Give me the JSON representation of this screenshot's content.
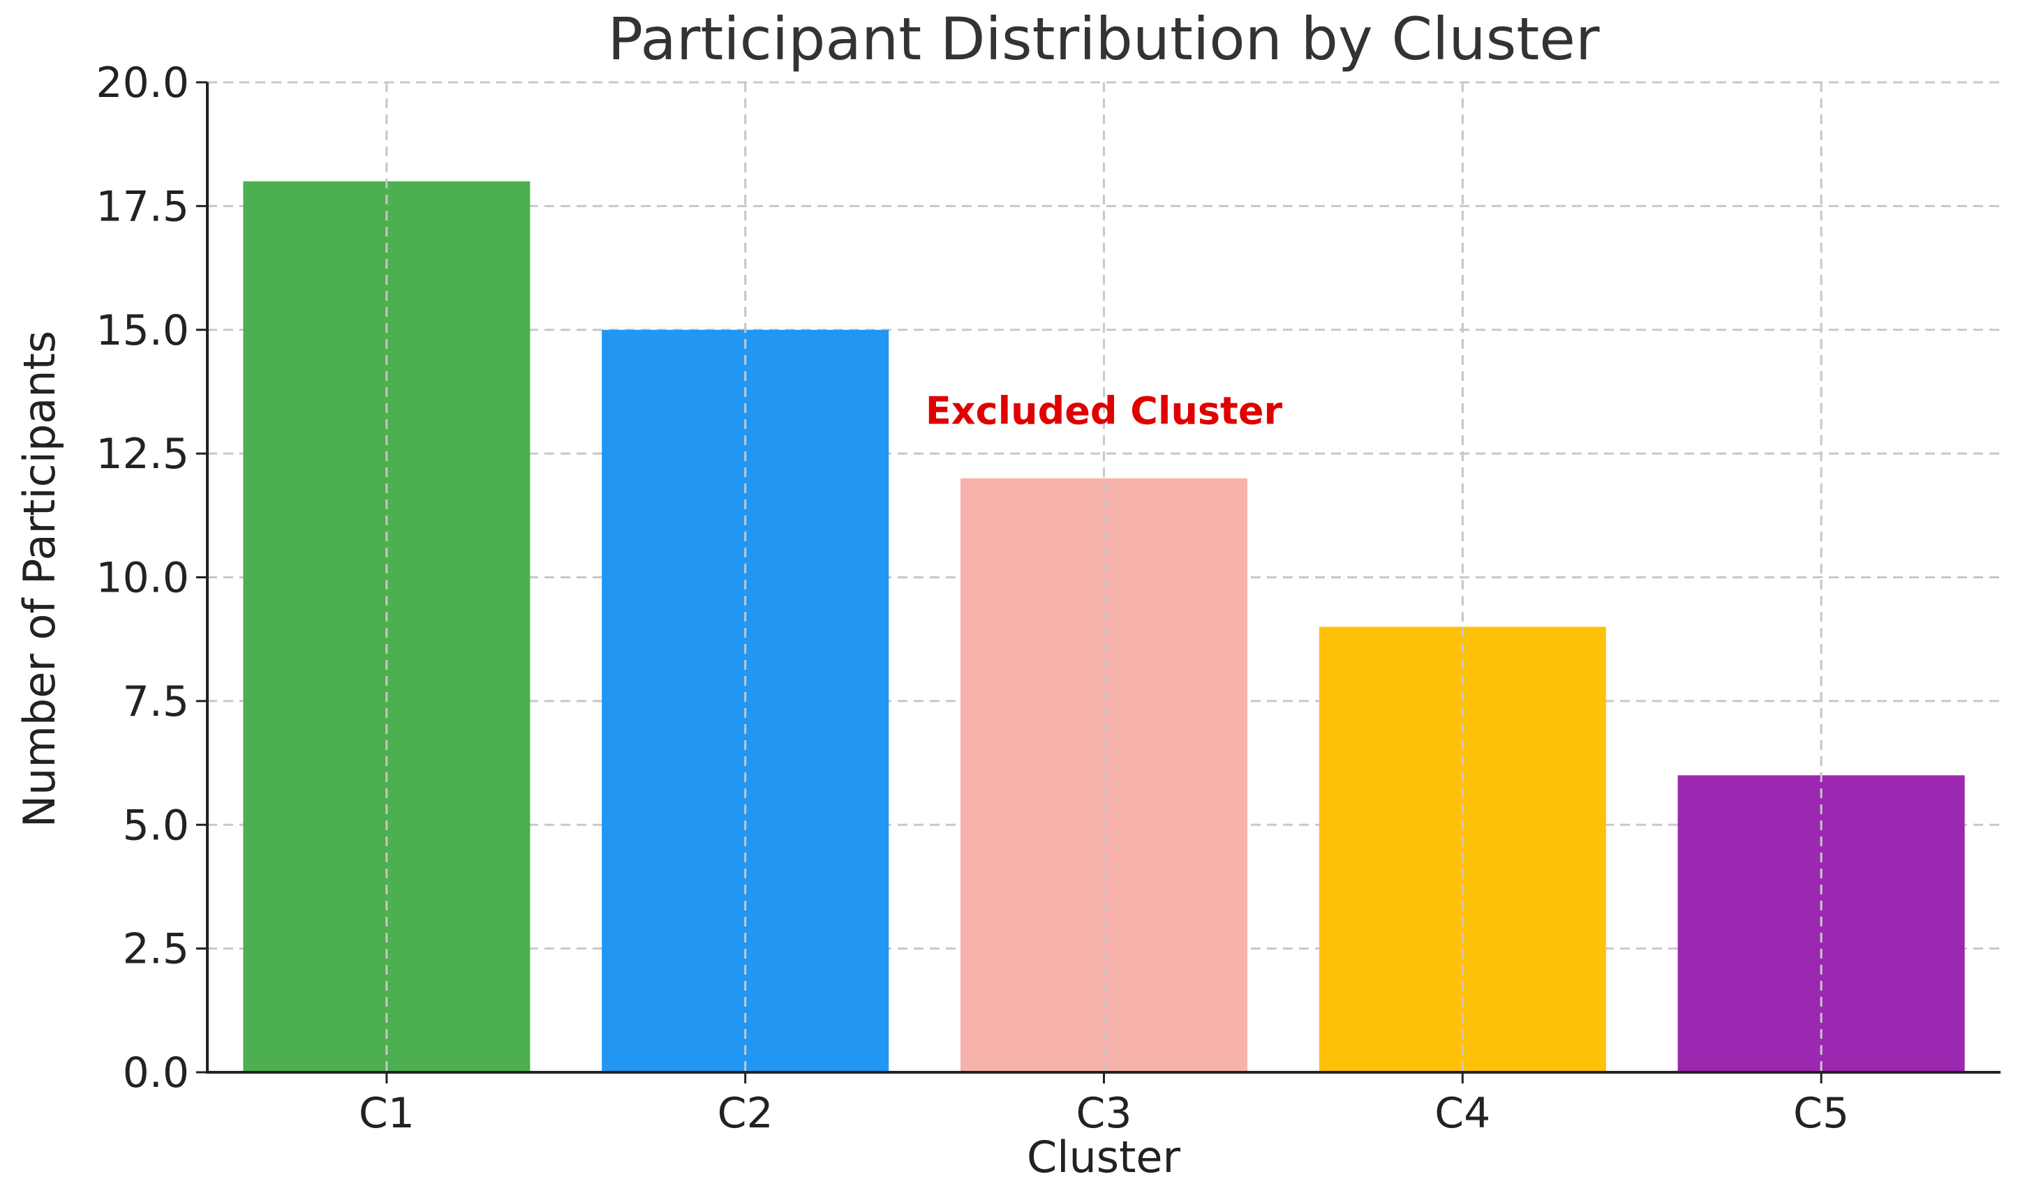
{
  "chart_data": {
    "type": "bar",
    "title": "Participant Distribution by Cluster",
    "xlabel": "Cluster",
    "ylabel": "Number of Participants",
    "categories": [
      "C1",
      "C2",
      "C3",
      "C4",
      "C5"
    ],
    "values": [
      18,
      15,
      12,
      9,
      6
    ],
    "colors": [
      "#4caf50",
      "#2196f3",
      "#f8b2ac",
      "#ffc107",
      "#9c27b0"
    ],
    "ylim": [
      0,
      20
    ],
    "yticks": [
      "0.0",
      "2.5",
      "5.0",
      "7.5",
      "10.0",
      "12.5",
      "15.0",
      "17.5",
      "20.0"
    ],
    "grid": true,
    "annotations": [
      {
        "text": "Excluded Cluster",
        "category": "C3",
        "y": 13.1,
        "color": "#e00000"
      }
    ]
  }
}
